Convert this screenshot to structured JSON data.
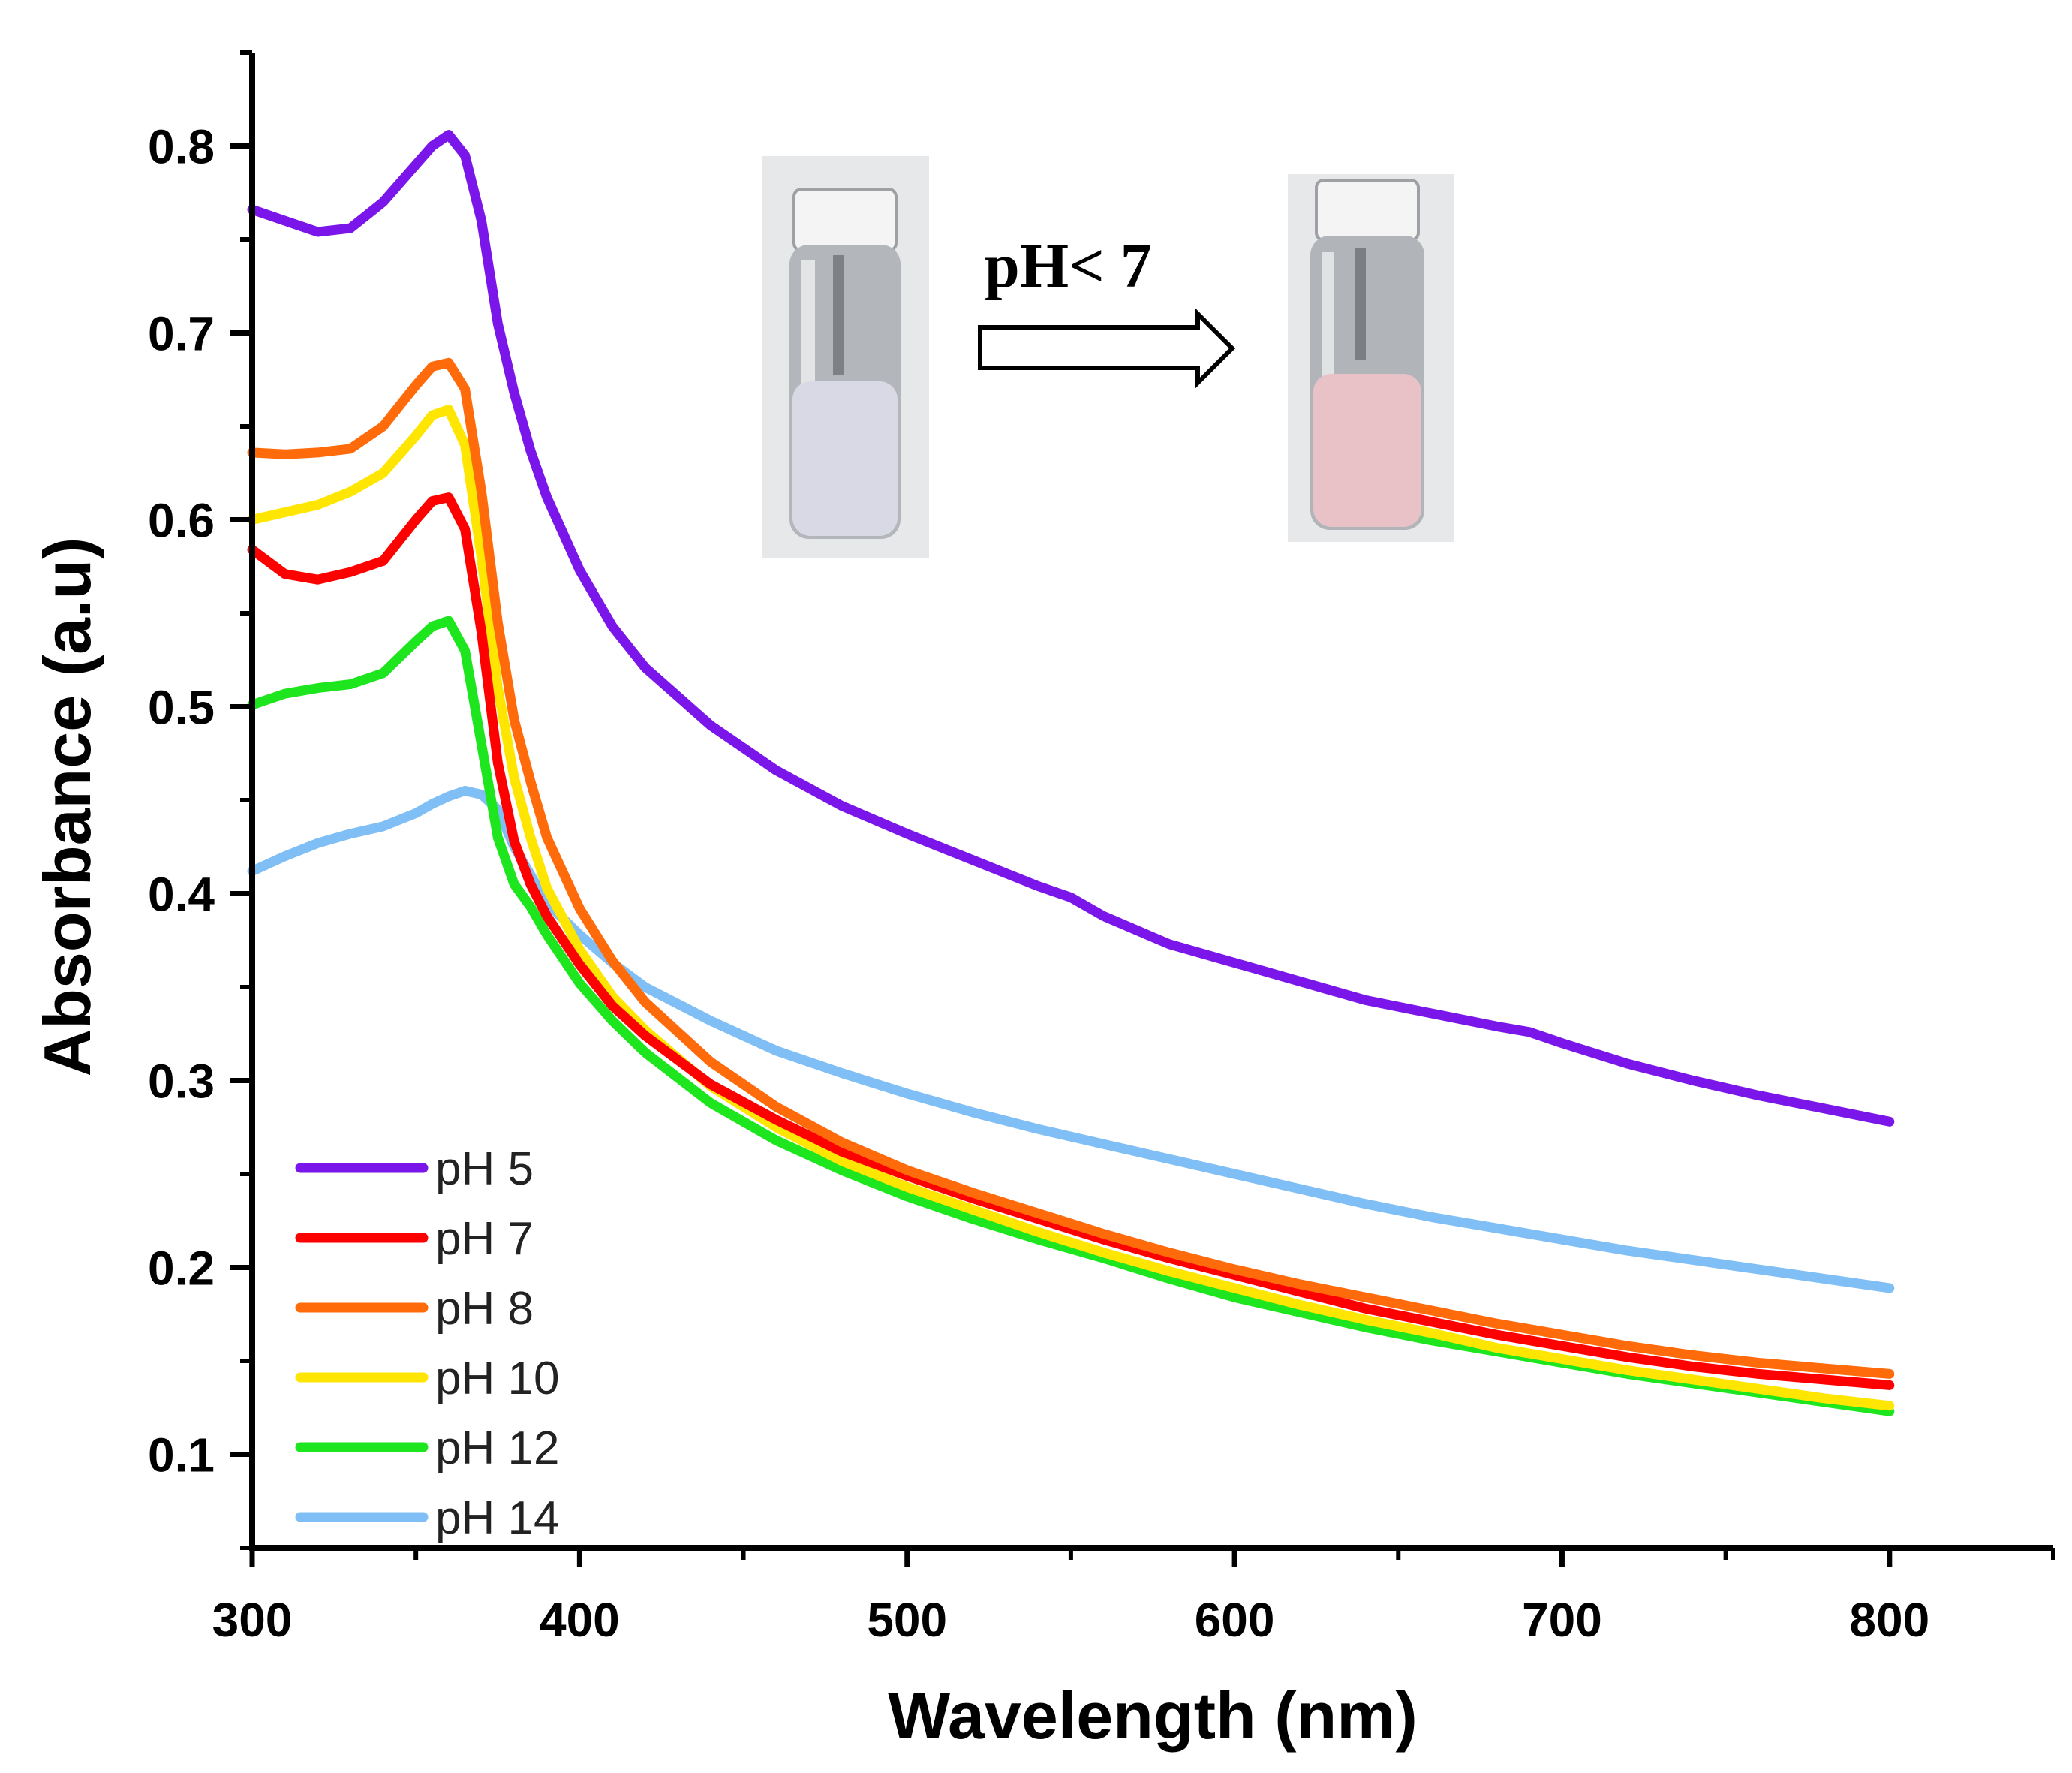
{
  "chart_data": {
    "type": "line",
    "title": "",
    "xlabel": "Wavelength (nm)",
    "ylabel": "Absorbance (a.u)",
    "xlim": [
      300,
      850
    ],
    "ylim": [
      0.05,
      0.85
    ],
    "xticks": [
      300,
      400,
      500,
      600,
      700,
      800
    ],
    "yticks": [
      0.1,
      0.2,
      0.3,
      0.4,
      0.5,
      0.6,
      0.7,
      0.8
    ],
    "xtick_labels": [
      "300",
      "400",
      "500",
      "600",
      "700",
      "800"
    ],
    "ytick_labels": [
      "0.1",
      "0.2",
      "0.3",
      "0.4",
      "0.5",
      "0.6",
      "0.7",
      "0.8"
    ],
    "grid": false,
    "legend_position": "bottom-left",
    "inset": {
      "label": "pH< 7",
      "left_vial_color": "#d9d9e6",
      "right_vial_color": "#e9c2c8"
    },
    "series": [
      {
        "name": "pH 5",
        "color": "#7b16ea",
        "x": [
          300,
          310,
          320,
          330,
          340,
          350,
          355,
          360,
          365,
          370,
          375,
          380,
          385,
          390,
          400,
          410,
          420,
          440,
          460,
          480,
          500,
          520,
          540,
          550,
          560,
          580,
          600,
          620,
          640,
          660,
          680,
          690,
          700,
          720,
          740,
          760,
          780,
          800
        ],
        "y": [
          0.766,
          0.76,
          0.754,
          0.756,
          0.77,
          0.79,
          0.8,
          0.806,
          0.795,
          0.76,
          0.705,
          0.668,
          0.637,
          0.612,
          0.573,
          0.543,
          0.521,
          0.49,
          0.466,
          0.447,
          0.432,
          0.418,
          0.404,
          0.398,
          0.388,
          0.373,
          0.363,
          0.353,
          0.343,
          0.336,
          0.329,
          0.326,
          0.32,
          0.309,
          0.3,
          0.292,
          0.285,
          0.278
        ]
      },
      {
        "name": "pH 7",
        "color": "#ff0000",
        "x": [
          300,
          310,
          320,
          330,
          340,
          350,
          355,
          360,
          365,
          370,
          375,
          380,
          385,
          390,
          400,
          410,
          420,
          440,
          460,
          480,
          500,
          520,
          540,
          560,
          580,
          600,
          620,
          640,
          660,
          680,
          700,
          720,
          740,
          760,
          780,
          800
        ],
        "y": [
          0.584,
          0.571,
          0.568,
          0.572,
          0.578,
          0.6,
          0.61,
          0.612,
          0.595,
          0.54,
          0.47,
          0.428,
          0.405,
          0.388,
          0.362,
          0.34,
          0.324,
          0.298,
          0.279,
          0.262,
          0.249,
          0.237,
          0.226,
          0.215,
          0.205,
          0.196,
          0.187,
          0.178,
          0.171,
          0.164,
          0.158,
          0.152,
          0.147,
          0.143,
          0.14,
          0.137
        ]
      },
      {
        "name": "pH 8",
        "color": "#ff6a0a",
        "x": [
          300,
          310,
          320,
          330,
          340,
          350,
          355,
          360,
          365,
          370,
          375,
          380,
          385,
          390,
          400,
          410,
          420,
          440,
          460,
          480,
          500,
          520,
          540,
          560,
          580,
          600,
          620,
          640,
          660,
          680,
          700,
          720,
          740,
          760,
          780,
          800
        ],
        "y": [
          0.636,
          0.635,
          0.636,
          0.638,
          0.65,
          0.672,
          0.682,
          0.684,
          0.67,
          0.615,
          0.545,
          0.493,
          0.46,
          0.43,
          0.392,
          0.364,
          0.342,
          0.31,
          0.286,
          0.267,
          0.252,
          0.24,
          0.229,
          0.218,
          0.208,
          0.199,
          0.191,
          0.184,
          0.177,
          0.17,
          0.164,
          0.158,
          0.153,
          0.149,
          0.146,
          0.143
        ]
      },
      {
        "name": "pH 10",
        "color": "#ffe600",
        "x": [
          300,
          310,
          320,
          330,
          340,
          350,
          355,
          360,
          365,
          370,
          375,
          380,
          385,
          390,
          400,
          410,
          420,
          440,
          460,
          480,
          500,
          520,
          540,
          560,
          580,
          600,
          620,
          640,
          660,
          680,
          700,
          720,
          740,
          760,
          780,
          800
        ],
        "y": [
          0.6,
          0.604,
          0.608,
          0.615,
          0.625,
          0.645,
          0.656,
          0.659,
          0.64,
          0.58,
          0.51,
          0.462,
          0.43,
          0.403,
          0.37,
          0.345,
          0.327,
          0.297,
          0.275,
          0.257,
          0.243,
          0.231,
          0.219,
          0.208,
          0.198,
          0.189,
          0.18,
          0.172,
          0.165,
          0.157,
          0.151,
          0.145,
          0.14,
          0.135,
          0.13,
          0.126
        ]
      },
      {
        "name": "pH 12",
        "color": "#1ee61e",
        "x": [
          300,
          310,
          320,
          330,
          340,
          350,
          355,
          360,
          365,
          370,
          375,
          380,
          385,
          390,
          400,
          410,
          420,
          440,
          460,
          480,
          500,
          520,
          540,
          560,
          580,
          600,
          620,
          640,
          660,
          680,
          700,
          720,
          740,
          760,
          780,
          800
        ],
        "y": [
          0.501,
          0.507,
          0.51,
          0.512,
          0.518,
          0.535,
          0.543,
          0.546,
          0.53,
          0.48,
          0.43,
          0.405,
          0.393,
          0.378,
          0.352,
          0.332,
          0.315,
          0.288,
          0.268,
          0.252,
          0.238,
          0.226,
          0.215,
          0.205,
          0.194,
          0.184,
          0.176,
          0.168,
          0.161,
          0.155,
          0.149,
          0.143,
          0.138,
          0.133,
          0.128,
          0.123
        ]
      },
      {
        "name": "pH 14",
        "color": "#7fbff5",
        "x": [
          300,
          310,
          320,
          330,
          340,
          350,
          355,
          360,
          365,
          370,
          375,
          380,
          385,
          390,
          400,
          410,
          420,
          440,
          460,
          480,
          500,
          520,
          540,
          560,
          580,
          600,
          620,
          640,
          660,
          680,
          700,
          720,
          740,
          760,
          780,
          800
        ],
        "y": [
          0.412,
          0.42,
          0.427,
          0.432,
          0.436,
          0.443,
          0.448,
          0.452,
          0.455,
          0.453,
          0.445,
          0.425,
          0.41,
          0.395,
          0.378,
          0.363,
          0.35,
          0.332,
          0.316,
          0.304,
          0.293,
          0.283,
          0.274,
          0.266,
          0.258,
          0.25,
          0.242,
          0.234,
          0.227,
          0.221,
          0.215,
          0.209,
          0.204,
          0.199,
          0.194,
          0.189
        ]
      }
    ]
  }
}
